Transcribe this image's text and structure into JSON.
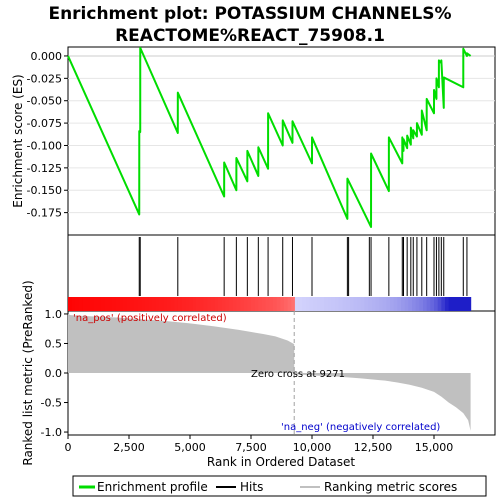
{
  "chart_data": {
    "type": "line",
    "title": "Enrichment plot: POTASSIUM CHANNELS%\nREACTOME%REACT_75908.1",
    "xlabel": "Rank in Ordered Dataset",
    "ylabel_top": "Enrichment score (ES)",
    "ylabel_bottom": "Ranked list metric (PreRanked)",
    "xlim": [
      0,
      17500
    ],
    "x_ticks": [
      0,
      2500,
      5000,
      7500,
      10000,
      12500,
      15000
    ],
    "x_tick_labels": [
      "0",
      "2,500",
      "5,000",
      "7,500",
      "10,000",
      "12,500",
      "15,000"
    ],
    "es_ylim": [
      -0.2,
      0.01
    ],
    "es_ticks": [
      0.0,
      -0.025,
      -0.05,
      -0.075,
      -0.1,
      -0.125,
      -0.15,
      -0.175
    ],
    "es_tick_labels": [
      "0.000",
      "-0.025",
      "-0.050",
      "-0.075",
      "-0.100",
      "-0.125",
      "-0.150",
      "-0.175"
    ],
    "metric_ylim": [
      -1.05,
      1.05
    ],
    "metric_ticks": [
      1.0,
      0.5,
      0.0,
      -0.5,
      -1.0
    ],
    "metric_tick_labels": [
      "1.0",
      "0.5",
      "0.0",
      "-0.5",
      "-1.0"
    ],
    "hits": [
      2920,
      2960,
      4500,
      6400,
      6900,
      7350,
      7800,
      8200,
      8800,
      9200,
      10000,
      11450,
      11500,
      12350,
      12420,
      13150,
      13700,
      13750,
      13900,
      14050,
      14150,
      14300,
      14500,
      14700,
      15000,
      15100,
      15200,
      15300,
      15400,
      16200,
      16350
    ],
    "es_curve": {
      "x": [
        0,
        2920,
        2921,
        2960,
        2961,
        4500,
        4501,
        6400,
        6401,
        6900,
        6901,
        7350,
        7351,
        7800,
        7801,
        8200,
        8201,
        8800,
        8801,
        9200,
        9201,
        10000,
        10001,
        11450,
        11451,
        12420,
        12421,
        13150,
        13151,
        13700,
        13701,
        13750,
        13751,
        13900,
        13901,
        14050,
        14051,
        14150,
        14151,
        14300,
        14301,
        14500,
        14501,
        14700,
        14701,
        15000,
        15001,
        15100,
        15101,
        15200,
        15201,
        15300,
        15301,
        15400,
        15401,
        16200,
        16201,
        16350,
        16351,
        16500
      ],
      "y": [
        0.0,
        -0.177,
        -0.084,
        -0.085,
        0.009,
        -0.086,
        -0.041,
        -0.157,
        -0.119,
        -0.15,
        -0.114,
        -0.14,
        -0.106,
        -0.134,
        -0.102,
        -0.126,
        -0.064,
        -0.1,
        -0.072,
        -0.097,
        -0.073,
        -0.12,
        -0.091,
        -0.182,
        -0.137,
        -0.191,
        -0.109,
        -0.151,
        -0.091,
        -0.12,
        -0.091,
        -0.106,
        -0.093,
        -0.103,
        -0.089,
        -0.099,
        -0.08,
        -0.092,
        -0.083,
        -0.09,
        -0.075,
        -0.088,
        -0.061,
        -0.083,
        -0.048,
        -0.064,
        -0.038,
        -0.048,
        -0.025,
        -0.035,
        -0.005,
        -0.008,
        -0.005,
        -0.058,
        -0.024,
        -0.035,
        0.008,
        0.0,
        0.003,
        0.0
      ]
    },
    "metric_curve": {
      "x": [
        0,
        100,
        500,
        1000,
        2000,
        3000,
        4000,
        5000,
        6000,
        7000,
        8000,
        8500,
        9000,
        9270,
        9271,
        10000,
        11000,
        12000,
        13000,
        13500,
        14000,
        14500,
        15000,
        15300,
        15600,
        15900,
        16200,
        16400,
        16500
      ],
      "y": [
        1.0,
        0.98,
        0.97,
        0.96,
        0.94,
        0.91,
        0.88,
        0.84,
        0.79,
        0.73,
        0.66,
        0.62,
        0.55,
        0.49,
        -0.02,
        -0.04,
        -0.06,
        -0.09,
        -0.13,
        -0.16,
        -0.2,
        -0.25,
        -0.32,
        -0.4,
        -0.5,
        -0.58,
        -0.68,
        -0.8,
        -0.98
      ]
    },
    "zero_cross_label": "Zero cross at 9271",
    "zero_cross": 9271,
    "pos_label": "'na_pos' (positively correlated)",
    "neg_label": "'na_neg' (negatively correlated)",
    "legend": {
      "placement": "bottom",
      "entries": [
        "Enrichment profile",
        "Hits",
        "Ranking metric scores"
      ]
    },
    "colors": {
      "es_line": "#00dd00",
      "hit": "#000000",
      "metric_fill": "#c0c0c0",
      "pos_text": "#cc0000",
      "neg_text": "#0000cc",
      "zero_line": "#a0a0a0"
    }
  }
}
